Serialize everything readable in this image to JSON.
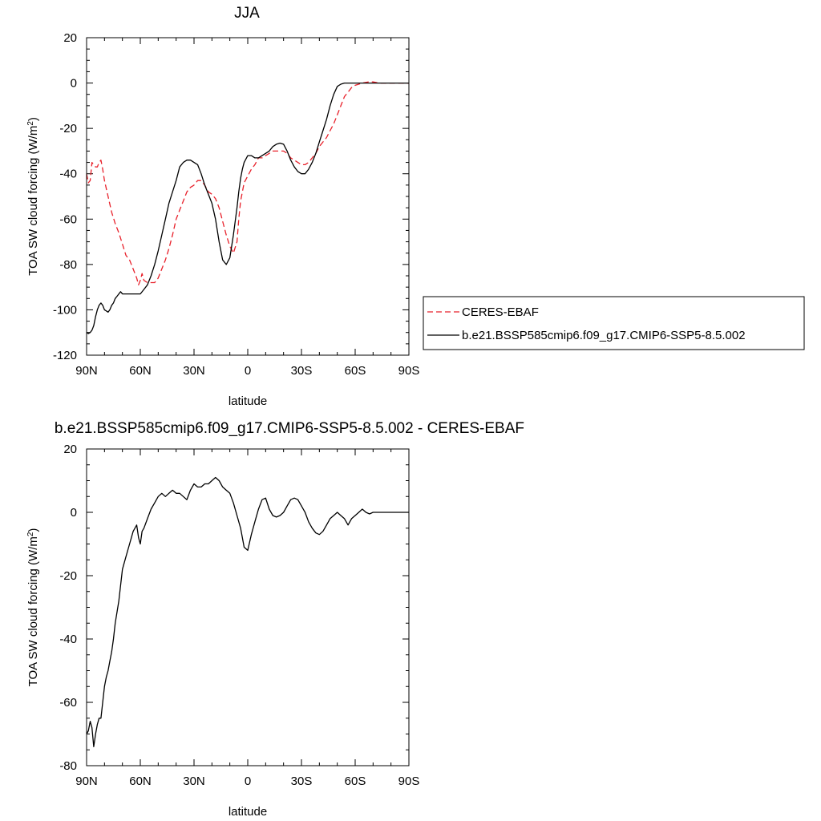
{
  "chart_data": [
    {
      "type": "line",
      "title": "JJA",
      "xlabel": "latitude",
      "ylabel_main": "TOA SW cloud forcing (W/m",
      "ylabel_sup": "2",
      "ylabel_close": ")",
      "xlim": [
        90,
        -90
      ],
      "ylim": [
        -120,
        20
      ],
      "x_ticks": [
        {
          "value": 90,
          "label": "90N"
        },
        {
          "value": 60,
          "label": "60N"
        },
        {
          "value": 30,
          "label": "30N"
        },
        {
          "value": 0,
          "label": "0"
        },
        {
          "value": -30,
          "label": "30S"
        },
        {
          "value": -60,
          "label": "60S"
        },
        {
          "value": -90,
          "label": "90S"
        }
      ],
      "y_ticks": [
        {
          "value": 20,
          "label": "20"
        },
        {
          "value": 0,
          "label": "0"
        },
        {
          "value": -20,
          "label": "-20"
        },
        {
          "value": -40,
          "label": "-40"
        },
        {
          "value": -60,
          "label": "-60"
        },
        {
          "value": -80,
          "label": "-80"
        },
        {
          "value": -100,
          "label": "-100"
        },
        {
          "value": -120,
          "label": "-120"
        }
      ],
      "legend_position": "right",
      "series": [
        {
          "name": "CERES-EBAF",
          "color": "#e8202a",
          "dash": "dashed",
          "x": [
            90,
            89,
            88,
            87,
            86,
            85,
            84,
            83,
            82,
            81,
            80,
            78,
            76,
            74,
            72,
            70,
            68,
            66,
            64,
            62,
            61,
            60,
            59,
            58,
            56,
            54,
            52,
            50,
            48,
            46,
            44,
            42,
            40,
            38,
            36,
            34,
            32,
            30,
            28,
            26,
            24,
            22,
            20,
            18,
            16,
            14,
            12,
            10,
            8,
            6,
            5,
            4,
            2,
            0,
            -2,
            -4,
            -6,
            -8,
            -10,
            -12,
            -14,
            -16,
            -18,
            -20,
            -22,
            -24,
            -26,
            -28,
            -30,
            -32,
            -34,
            -36,
            -38,
            -40,
            -42,
            -44,
            -46,
            -48,
            -50,
            -52,
            -54,
            -56,
            -58,
            -60,
            -62,
            -64,
            -66,
            -68,
            -70,
            -72,
            -74,
            -76,
            -78,
            -80,
            -82,
            -84,
            -86,
            -88,
            -90
          ],
          "y": [
            -40,
            -44,
            -43,
            -35,
            -36,
            -37,
            -37,
            -35,
            -34,
            -38,
            -43,
            -50,
            -57,
            -62,
            -66,
            -71,
            -76,
            -78,
            -82,
            -86,
            -89,
            -87,
            -84,
            -87,
            -88,
            -88,
            -88,
            -86,
            -82,
            -78,
            -73,
            -67,
            -60,
            -56,
            -52,
            -48,
            -46,
            -45,
            -43,
            -43,
            -45,
            -48,
            -49,
            -51,
            -55,
            -61,
            -67,
            -72,
            -75,
            -70,
            -60,
            -52,
            -44,
            -41,
            -38,
            -36,
            -33,
            -33,
            -32,
            -31,
            -30,
            -30,
            -30,
            -30,
            -31,
            -33,
            -34,
            -35,
            -36,
            -36,
            -35,
            -33,
            -31,
            -28,
            -26,
            -24,
            -21,
            -18,
            -14,
            -10,
            -6,
            -4,
            -2,
            -1,
            -0.5,
            0,
            0.3,
            0.6,
            0.5,
            0.2,
            0,
            0,
            0,
            0,
            0,
            0,
            0,
            0,
            0
          ]
        },
        {
          "name": "b.e21.BSSP585cmip6.f09_g17.CMIP6-SSP5-8.5.002",
          "color": "#000000",
          "dash": "solid",
          "x": [
            90,
            89,
            88,
            87,
            86,
            85,
            84,
            83,
            82,
            81,
            80,
            79,
            78,
            77,
            76,
            75,
            74,
            73,
            72,
            71,
            70,
            68,
            66,
            64,
            62,
            60,
            58,
            56,
            54,
            52,
            50,
            48,
            46,
            44,
            42,
            40,
            38,
            36,
            34,
            32,
            30,
            28,
            26,
            24,
            22,
            20,
            18,
            16,
            14,
            12,
            10,
            8,
            6,
            5,
            4,
            3,
            2,
            0,
            -2,
            -4,
            -6,
            -8,
            -10,
            -12,
            -14,
            -16,
            -18,
            -20,
            -22,
            -24,
            -26,
            -28,
            -30,
            -32,
            -34,
            -36,
            -38,
            -40,
            -42,
            -44,
            -46,
            -48,
            -50,
            -52,
            -54,
            -56,
            -58,
            -60,
            -62,
            -64,
            -66,
            -68,
            -70,
            -72,
            -74,
            -76,
            -78,
            -80,
            -82,
            -84,
            -86,
            -88,
            -90
          ],
          "y": [
            -110,
            -110.5,
            -110,
            -109,
            -107,
            -103,
            -100,
            -98,
            -97,
            -98,
            -100,
            -100.5,
            -101,
            -100,
            -98,
            -97,
            -95,
            -94,
            -93,
            -92,
            -93,
            -93,
            -93,
            -93,
            -93,
            -93,
            -91,
            -89,
            -85,
            -80,
            -74,
            -67,
            -60,
            -53,
            -48,
            -43,
            -37,
            -35,
            -34,
            -34,
            -35,
            -36,
            -40,
            -45,
            -49,
            -53,
            -60,
            -70,
            -78,
            -80,
            -77,
            -67,
            -55,
            -48,
            -42,
            -38,
            -35,
            -32,
            -32,
            -33,
            -33,
            -32,
            -31,
            -30,
            -28,
            -27,
            -26.5,
            -27,
            -30,
            -34,
            -37,
            -39,
            -40,
            -40,
            -38,
            -35,
            -31,
            -26,
            -21,
            -16,
            -10,
            -5,
            -1.5,
            -0.5,
            0,
            0,
            0,
            0,
            0,
            0,
            0,
            0,
            0,
            0,
            0,
            0,
            0,
            0,
            0,
            0,
            0,
            0,
            0
          ]
        }
      ]
    },
    {
      "type": "line",
      "title": "b.e21.BSSP585cmip6.f09_g17.CMIP6-SSP5-8.5.002 - CERES-EBAF",
      "xlabel": "latitude",
      "ylabel_main": "TOA SW cloud forcing (W/m",
      "ylabel_sup": "2",
      "ylabel_close": ")",
      "xlim": [
        90,
        -90
      ],
      "ylim": [
        -80,
        20
      ],
      "x_ticks": [
        {
          "value": 90,
          "label": "90N"
        },
        {
          "value": 60,
          "label": "60N"
        },
        {
          "value": 30,
          "label": "30N"
        },
        {
          "value": 0,
          "label": "0"
        },
        {
          "value": -30,
          "label": "30S"
        },
        {
          "value": -60,
          "label": "60S"
        },
        {
          "value": -90,
          "label": "90S"
        }
      ],
      "y_ticks": [
        {
          "value": 20,
          "label": "20"
        },
        {
          "value": 0,
          "label": "0"
        },
        {
          "value": -20,
          "label": "-20"
        },
        {
          "value": -40,
          "label": "-40"
        },
        {
          "value": -60,
          "label": "-60"
        },
        {
          "value": -80,
          "label": "-80"
        }
      ],
      "series": [
        {
          "name": "",
          "color": "#000000",
          "dash": "solid",
          "x": [
            90,
            89,
            88,
            87,
            86,
            85,
            84,
            83,
            82,
            81,
            80,
            79,
            78,
            77,
            76,
            75,
            74,
            72,
            70,
            68,
            66,
            64,
            62,
            61,
            60,
            59,
            58,
            56,
            54,
            52,
            50,
            48,
            46,
            44,
            42,
            40,
            38,
            36,
            34,
            32,
            30,
            28,
            26,
            24,
            22,
            20,
            18,
            16,
            14,
            12,
            10,
            8,
            6,
            4,
            3,
            2,
            0,
            -2,
            -4,
            -6,
            -8,
            -10,
            -12,
            -14,
            -16,
            -18,
            -20,
            -22,
            -24,
            -26,
            -28,
            -30,
            -32,
            -34,
            -36,
            -38,
            -40,
            -42,
            -44,
            -46,
            -48,
            -50,
            -52,
            -54,
            -56,
            -58,
            -60,
            -62,
            -64,
            -66,
            -68,
            -70,
            -72,
            -74,
            -76,
            -78,
            -80,
            -82,
            -84,
            -86,
            -88,
            -90
          ],
          "y": [
            -70,
            -69,
            -66,
            -68,
            -74,
            -70,
            -67,
            -65,
            -65,
            -60,
            -55,
            -52,
            -50,
            -47,
            -44,
            -40,
            -35,
            -28,
            -18,
            -14,
            -10,
            -6,
            -4,
            -8,
            -10,
            -6,
            -5,
            -2,
            1,
            3,
            5,
            6,
            5,
            6,
            7,
            6,
            6,
            5,
            4,
            7,
            9,
            8,
            8,
            9,
            9,
            10,
            11,
            10,
            8,
            7,
            6,
            3,
            -1,
            -5,
            -8,
            -11,
            -12,
            -7,
            -3,
            1,
            4,
            4.5,
            1,
            -1,
            -1.5,
            -1,
            0,
            2,
            4,
            4.5,
            4,
            2,
            0,
            -3,
            -5,
            -6.5,
            -7,
            -6,
            -4,
            -2,
            -1,
            0,
            -1,
            -2,
            -4,
            -2,
            -1,
            0,
            1,
            0,
            -0.5,
            0,
            0,
            0,
            0,
            0,
            0,
            0,
            0,
            0,
            0,
            0
          ]
        }
      ]
    }
  ]
}
